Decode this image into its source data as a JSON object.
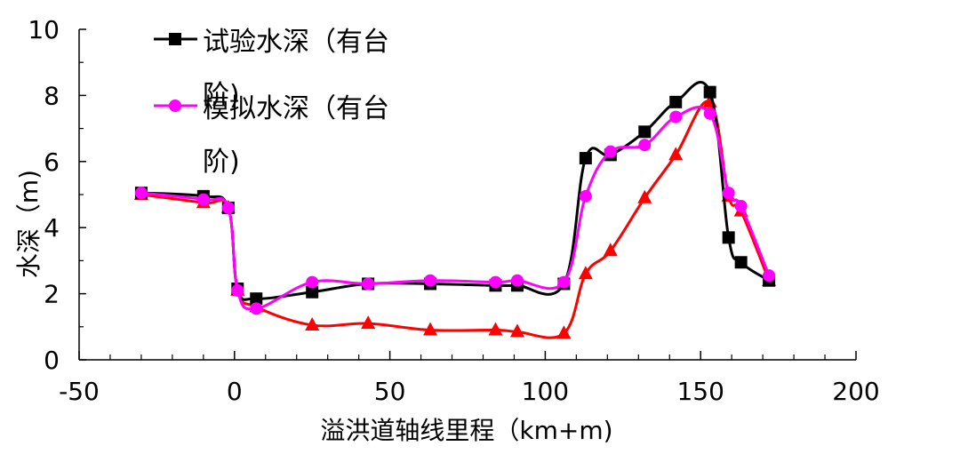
{
  "chart_data": {
    "type": "line",
    "xlabel": "溢洪道轴线里程（km+m)",
    "ylabel": "水深（m)",
    "xlim": [
      -50,
      200
    ],
    "ylim": [
      0,
      10
    ],
    "xticks": [
      -50,
      0,
      50,
      100,
      150,
      200
    ],
    "yticks": [
      0,
      2,
      4,
      6,
      8,
      10
    ],
    "grid": false,
    "legend_position": "top-left",
    "series": [
      {
        "name": "试验水深（有台阶)",
        "color": "#000000",
        "marker": "square",
        "x": [
          -30,
          -10,
          -2,
          1,
          7,
          25,
          43,
          63,
          84,
          91,
          106,
          113,
          121,
          132,
          142,
          153,
          159,
          163,
          172
        ],
        "y": [
          5.05,
          4.95,
          4.6,
          2.15,
          1.85,
          2.05,
          2.3,
          2.3,
          2.25,
          2.25,
          2.3,
          6.1,
          6.2,
          6.9,
          7.8,
          8.1,
          3.7,
          2.95,
          2.4
        ]
      },
      {
        "name": "模拟水深（有台阶)",
        "color": "#ff00ff",
        "marker": "circle",
        "x": [
          -30,
          -10,
          -2,
          1,
          7,
          25,
          43,
          63,
          84,
          91,
          106,
          113,
          121,
          132,
          142,
          153,
          159,
          163,
          172
        ],
        "y": [
          5.05,
          4.85,
          4.6,
          2.1,
          1.55,
          2.35,
          2.3,
          2.4,
          2.35,
          2.4,
          2.35,
          4.95,
          6.3,
          6.5,
          7.35,
          7.45,
          5.05,
          4.65,
          2.55
        ]
      },
      {
        "color": "#ff0000",
        "marker": "triangle",
        "x": [
          -30,
          -10,
          -2,
          1,
          7,
          25,
          43,
          63,
          84,
          91,
          106,
          113,
          121,
          132,
          142,
          153,
          159,
          163,
          172
        ],
        "y": [
          5.0,
          4.75,
          4.6,
          2.1,
          1.6,
          1.05,
          1.1,
          0.9,
          0.9,
          0.85,
          0.8,
          2.6,
          3.3,
          4.9,
          6.2,
          7.8,
          4.95,
          4.5,
          2.4
        ]
      }
    ]
  }
}
